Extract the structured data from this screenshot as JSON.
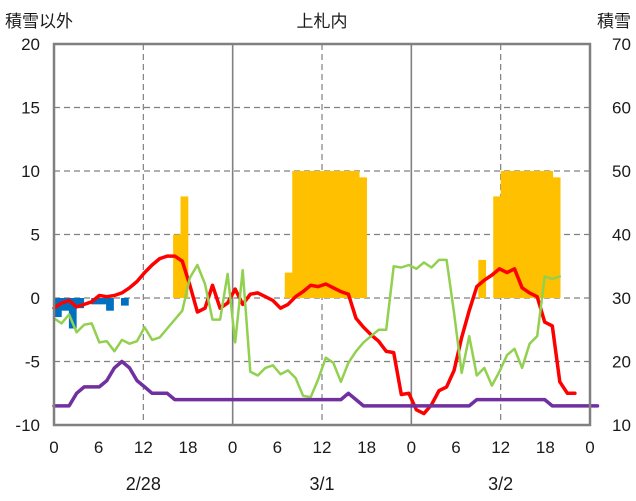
{
  "chart_data": {
    "type": "bar",
    "title": "上札内",
    "y_left_label": "積雪以外",
    "y_right_label": "積雪",
    "y_left_range": [
      -10,
      20
    ],
    "y_left_ticks": [
      "20",
      "15",
      "10",
      "5",
      "0",
      "-5",
      "-10"
    ],
    "y_right_range": [
      10,
      70
    ],
    "y_right_ticks": [
      "70",
      "60",
      "50",
      "40",
      "30",
      "20",
      "10"
    ],
    "x_range_hours": [
      0,
      72
    ],
    "x_tick_labels": [
      "0",
      "6",
      "12",
      "18",
      "0",
      "6",
      "12",
      "18",
      "0",
      "6",
      "12",
      "18",
      "0"
    ],
    "date_labels": [
      {
        "text": "2/28",
        "hour": 12
      },
      {
        "text": "3/1",
        "hour": 36
      },
      {
        "text": "3/2",
        "hour": 60
      }
    ],
    "grid": {
      "vertical_dashed_hours": [
        12,
        36,
        60
      ],
      "vertical_solid_hours": [
        24,
        48
      ],
      "horizontal_dashed_values": [
        15,
        10,
        5,
        0,
        -5
      ]
    },
    "colors": {
      "snow_bars": "#ffc000",
      "blue_bars": "#0070c0",
      "red_line": "#ff0000",
      "green_line": "#92d050",
      "purple_line": "#7030a0",
      "frame": "#808080",
      "grid": "#808080"
    },
    "series": [
      {
        "kind": "bar",
        "axis": "right",
        "color_key": "snow_bars",
        "hours": [
          16,
          17,
          31,
          32,
          33,
          34,
          35,
          36,
          37,
          38,
          39,
          40,
          41,
          57,
          59,
          60,
          61,
          62,
          63,
          64,
          65,
          66,
          67
        ],
        "values": [
          40,
          46,
          34,
          50,
          50,
          50,
          50,
          50,
          50,
          50,
          50,
          50,
          49,
          36,
          46,
          50,
          50,
          50,
          50,
          50,
          50,
          50,
          49
        ]
      },
      {
        "kind": "bar",
        "axis": "left",
        "color_key": "blue_bars",
        "hours": [
          0,
          1,
          2,
          3,
          5,
          6,
          7,
          9
        ],
        "values": [
          -1.5,
          -1,
          -2.4,
          -0.8,
          -0.5,
          -0.5,
          -1.0,
          -0.6
        ]
      },
      {
        "kind": "line",
        "axis": "left",
        "color_key": "red_line",
        "values": [
          -0.8,
          -0.4,
          -0.2,
          -0.7,
          -0.5,
          -0.3,
          0.2,
          0.1,
          0.2,
          0.4,
          0.8,
          1.3,
          2.0,
          2.6,
          3.1,
          3.3,
          3.3,
          2.9,
          1.0,
          -1.1,
          -0.8,
          1.0,
          -0.8,
          -0.4,
          0.7,
          -0.5,
          0.3,
          0.4,
          0.1,
          -0.2,
          -0.8,
          -0.5,
          0.1,
          0.5,
          1.0,
          0.9,
          1.1,
          0.8,
          0.5,
          0.3,
          -1.6,
          -2.3,
          -2.9,
          -3.4,
          -4.2,
          -4.3,
          -7.6,
          -7.5,
          -8.8,
          -9.1,
          -8.4,
          -7.3,
          -7.0,
          -5.7,
          -3.1,
          -1.0,
          0.9,
          1.4,
          1.8,
          2.3,
          2.0,
          2.3,
          0.8,
          0.4,
          0.1,
          -1.9,
          -2.2,
          -6.6,
          -7.5,
          -7.5
        ]
      },
      {
        "kind": "line",
        "axis": "left",
        "color_key": "green_line",
        "values": [
          -1.6,
          -2.0,
          -1.3,
          -2.7,
          -2.1,
          -2.0,
          -3.5,
          -3.4,
          -4.2,
          -3.3,
          -3.6,
          -3.4,
          -2.3,
          -3.3,
          -3.1,
          -2.4,
          -1.7,
          -1.0,
          1.6,
          2.6,
          1.1,
          -1.7,
          -1.7,
          1.9,
          -3.5,
          2.2,
          -5.8,
          -6.1,
          -5.5,
          -5.3,
          -6.0,
          -5.7,
          -6.3,
          -7.7,
          -7.8,
          -6.4,
          -4.7,
          -5.1,
          -6.6,
          -5.1,
          -4.2,
          -3.5,
          -3.0,
          -2.5,
          -2.5,
          2.5,
          2.4,
          2.6,
          2.3,
          2.8,
          2.4,
          3.0,
          3.0,
          -1.2,
          -5.9,
          -3.0,
          -6.1,
          -5.5,
          -6.9,
          -5.8,
          -4.5,
          -4.0,
          -5.5,
          -3.6,
          -3.0,
          1.7,
          1.5,
          1.7
        ]
      },
      {
        "kind": "line",
        "axis": "left",
        "color_key": "purple_line",
        "values": [
          -8.5,
          -8.5,
          -8.5,
          -7.5,
          -7.0,
          -7.0,
          -7.0,
          -6.5,
          -5.5,
          -5.0,
          -5.5,
          -6.5,
          -7.0,
          -7.5,
          -7.5,
          -7.5,
          -8.0,
          -8.0,
          -8.0,
          -8.0,
          -8.0,
          -8.0,
          -8.0,
          -8.0,
          -8.0,
          -8.0,
          -8.0,
          -8.0,
          -8.0,
          -8.0,
          -8.0,
          -8.0,
          -8.0,
          -8.0,
          -8.0,
          -8.0,
          -8.0,
          -8.0,
          -8.0,
          -7.5,
          -8.0,
          -8.5,
          -8.5,
          -8.5,
          -8.5,
          -8.5,
          -8.5,
          -8.5,
          -8.5,
          -8.5,
          -8.5,
          -8.5,
          -8.5,
          -8.5,
          -8.5,
          -8.5,
          -8.0,
          -8.0,
          -8.0,
          -8.0,
          -8.0,
          -8.0,
          -8.0,
          -8.0,
          -8.0,
          -8.0,
          -8.5,
          -8.5,
          -8.5,
          -8.5,
          -8.5,
          -8.5,
          -8.5
        ]
      }
    ]
  }
}
